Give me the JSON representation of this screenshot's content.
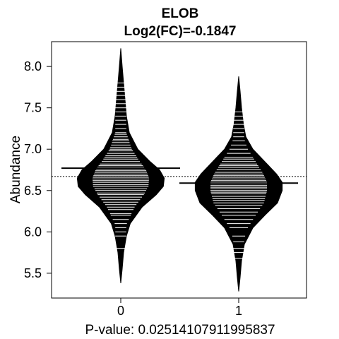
{
  "chart_data": {
    "type": "beanplot",
    "title": "ELOB",
    "subtitle": "Log2(FC)=-0.1847",
    "xlabel": "P-value: 0.02514107911995837",
    "ylabel": "Abundance",
    "categories": [
      "0",
      "1"
    ],
    "ylim": [
      5.2,
      8.3
    ],
    "yticks": [
      "5.5",
      "6.0",
      "6.5",
      "7.0",
      "7.5",
      "8.0"
    ],
    "overall_mean": 6.67,
    "grid": false,
    "legend": "none",
    "groups": [
      {
        "name": "0",
        "mean": 6.77,
        "density": [
          [
            5.38,
            0.0
          ],
          [
            5.55,
            0.03
          ],
          [
            5.75,
            0.06
          ],
          [
            5.95,
            0.12
          ],
          [
            6.1,
            0.2
          ],
          [
            6.3,
            0.45
          ],
          [
            6.45,
            0.75
          ],
          [
            6.55,
            0.9
          ],
          [
            6.65,
            0.92
          ],
          [
            6.75,
            0.82
          ],
          [
            6.85,
            0.62
          ],
          [
            7.0,
            0.36
          ],
          [
            7.2,
            0.18
          ],
          [
            7.4,
            0.12
          ],
          [
            7.6,
            0.09
          ],
          [
            7.8,
            0.06
          ],
          [
            8.0,
            0.03
          ],
          [
            8.22,
            0.0
          ]
        ],
        "values": [
          5.8,
          5.95,
          6.0,
          6.05,
          6.1,
          6.15,
          6.2,
          6.22,
          6.27,
          6.3,
          6.33,
          6.36,
          6.39,
          6.42,
          6.45,
          6.47,
          6.5,
          6.52,
          6.55,
          6.57,
          6.6,
          6.62,
          6.64,
          6.66,
          6.68,
          6.7,
          6.72,
          6.74,
          6.76,
          6.78,
          6.8,
          6.82,
          6.85,
          6.88,
          6.9,
          6.92,
          6.95,
          6.98,
          7.0,
          7.02,
          7.05,
          7.08,
          7.1,
          7.12,
          7.15,
          7.18,
          7.2,
          7.25,
          7.3,
          7.35,
          7.4,
          7.45,
          7.5,
          7.55,
          7.6,
          7.65,
          7.7,
          7.75,
          7.8
        ]
      },
      {
        "name": "1",
        "mean": 6.59,
        "density": [
          [
            5.28,
            0.0
          ],
          [
            5.45,
            0.03
          ],
          [
            5.65,
            0.06
          ],
          [
            5.85,
            0.12
          ],
          [
            6.05,
            0.3
          ],
          [
            6.2,
            0.55
          ],
          [
            6.35,
            0.82
          ],
          [
            6.5,
            0.92
          ],
          [
            6.6,
            0.92
          ],
          [
            6.7,
            0.8
          ],
          [
            6.85,
            0.55
          ],
          [
            7.0,
            0.3
          ],
          [
            7.15,
            0.15
          ],
          [
            7.3,
            0.1
          ],
          [
            7.5,
            0.06
          ],
          [
            7.7,
            0.03
          ],
          [
            7.88,
            0.0
          ]
        ],
        "values": [
          5.68,
          5.75,
          5.8,
          5.88,
          5.95,
          6.05,
          6.1,
          6.15,
          6.2,
          6.24,
          6.28,
          6.32,
          6.35,
          6.38,
          6.4,
          6.43,
          6.46,
          6.48,
          6.5,
          6.52,
          6.54,
          6.56,
          6.58,
          6.6,
          6.62,
          6.64,
          6.66,
          6.68,
          6.7,
          6.72,
          6.75,
          6.78,
          6.8,
          6.82,
          6.85,
          6.88,
          6.9,
          6.95,
          7.0,
          7.05,
          7.1,
          7.15,
          7.2,
          7.25,
          7.3,
          7.35,
          7.4,
          7.45
        ]
      }
    ]
  }
}
